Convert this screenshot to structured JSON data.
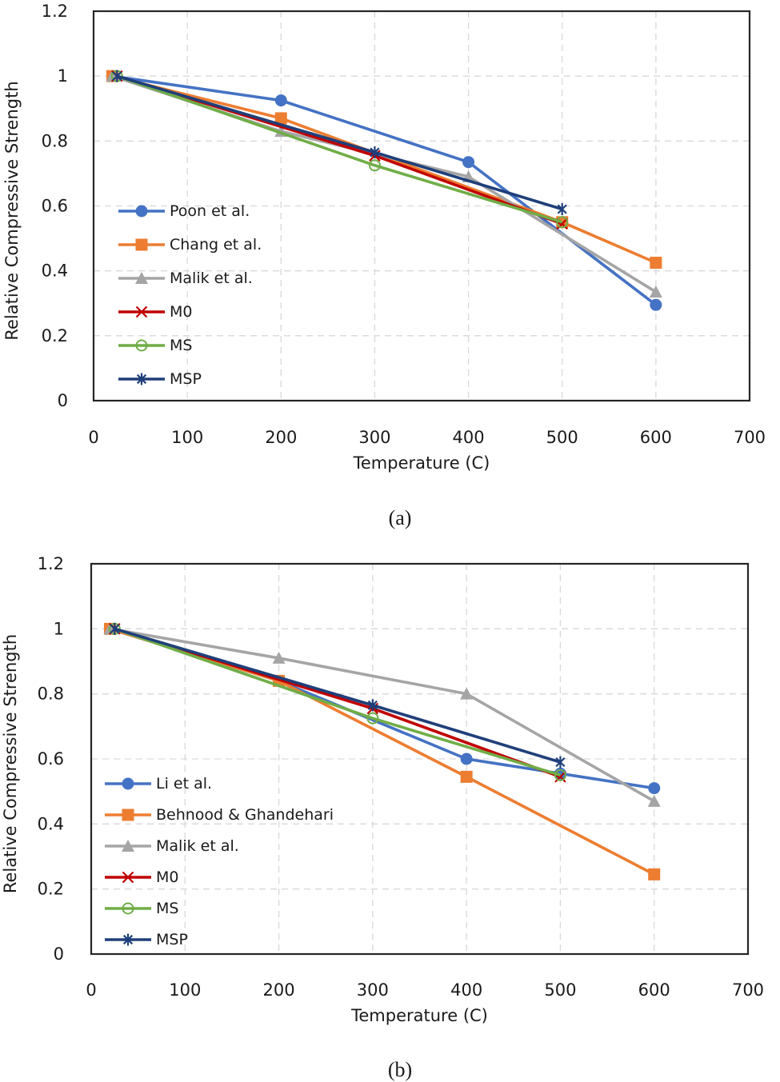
{
  "chart_data": [
    {
      "type": "line",
      "caption": "(a)",
      "xlabel": "Temperature (C)",
      "ylabel": "Relative Compressive Strength",
      "xlim": [
        0,
        700
      ],
      "ylim": [
        0,
        1.2
      ],
      "xticks": [
        "0",
        "100",
        "200",
        "300",
        "400",
        "500",
        "600",
        "700"
      ],
      "yticks": [
        "0",
        "0.2",
        "0.4",
        "0.6",
        "0.8",
        "1",
        "1.2"
      ],
      "grid": true,
      "legend_position": "lower-left",
      "series": [
        {
          "name": "Poon et al.",
          "color": "#4472C4",
          "marker": "circle",
          "x": [
            20,
            200,
            400,
            600
          ],
          "y": [
            1.0,
            0.925,
            0.735,
            0.295
          ]
        },
        {
          "name": "Chang et al.",
          "color": "#ED7D31",
          "marker": "square",
          "x": [
            20,
            200,
            500,
            600
          ],
          "y": [
            1.0,
            0.87,
            0.55,
            0.425
          ]
        },
        {
          "name": "Malik et al.",
          "color": "#A5A5A5",
          "marker": "triangle",
          "x": [
            20,
            200,
            400,
            600
          ],
          "y": [
            1.0,
            0.83,
            0.69,
            0.335
          ]
        },
        {
          "name": "M0",
          "color": "#C00000",
          "marker": "x",
          "x": [
            25,
            300,
            500
          ],
          "y": [
            1.0,
            0.755,
            0.545
          ]
        },
        {
          "name": "MS",
          "color": "#70AD47",
          "marker": "open-circle",
          "x": [
            25,
            300,
            500
          ],
          "y": [
            1.0,
            0.725,
            0.55
          ]
        },
        {
          "name": "MSP",
          "color": "#1F3F7A",
          "marker": "asterisk",
          "x": [
            25,
            300,
            500
          ],
          "y": [
            1.0,
            0.765,
            0.59
          ]
        }
      ]
    },
    {
      "type": "line",
      "caption": "(b)",
      "xlabel": "Temperature (C)",
      "ylabel": "Relative Compressive Strength",
      "xlim": [
        0,
        700
      ],
      "ylim": [
        0,
        1.2
      ],
      "xticks": [
        "0",
        "100",
        "200",
        "300",
        "400",
        "500",
        "600",
        "700"
      ],
      "yticks": [
        "0",
        "0.2",
        "0.4",
        "0.6",
        "0.8",
        "1",
        "1.2"
      ],
      "grid": true,
      "legend_position": "lower-left",
      "series": [
        {
          "name": "Li et al.",
          "color": "#4472C4",
          "marker": "circle",
          "x": [
            20,
            200,
            400,
            500,
            600
          ],
          "y": [
            1.0,
            0.84,
            0.6,
            0.555,
            0.51
          ]
        },
        {
          "name": "Behnood & Ghandehari",
          "color": "#ED7D31",
          "marker": "square",
          "x": [
            20,
            200,
            400,
            600
          ],
          "y": [
            1.0,
            0.84,
            0.545,
            0.245
          ]
        },
        {
          "name": "Malik et al.",
          "color": "#A5A5A5",
          "marker": "triangle",
          "x": [
            20,
            200,
            400,
            600
          ],
          "y": [
            1.0,
            0.91,
            0.8,
            0.47
          ]
        },
        {
          "name": "M0",
          "color": "#C00000",
          "marker": "x",
          "x": [
            25,
            300,
            500
          ],
          "y": [
            1.0,
            0.755,
            0.545
          ]
        },
        {
          "name": "MS",
          "color": "#70AD47",
          "marker": "open-circle",
          "x": [
            25,
            300,
            500
          ],
          "y": [
            1.0,
            0.725,
            0.55
          ]
        },
        {
          "name": "MSP",
          "color": "#1F3F7A",
          "marker": "asterisk",
          "x": [
            25,
            300,
            500
          ],
          "y": [
            1.0,
            0.765,
            0.59
          ]
        }
      ]
    }
  ]
}
